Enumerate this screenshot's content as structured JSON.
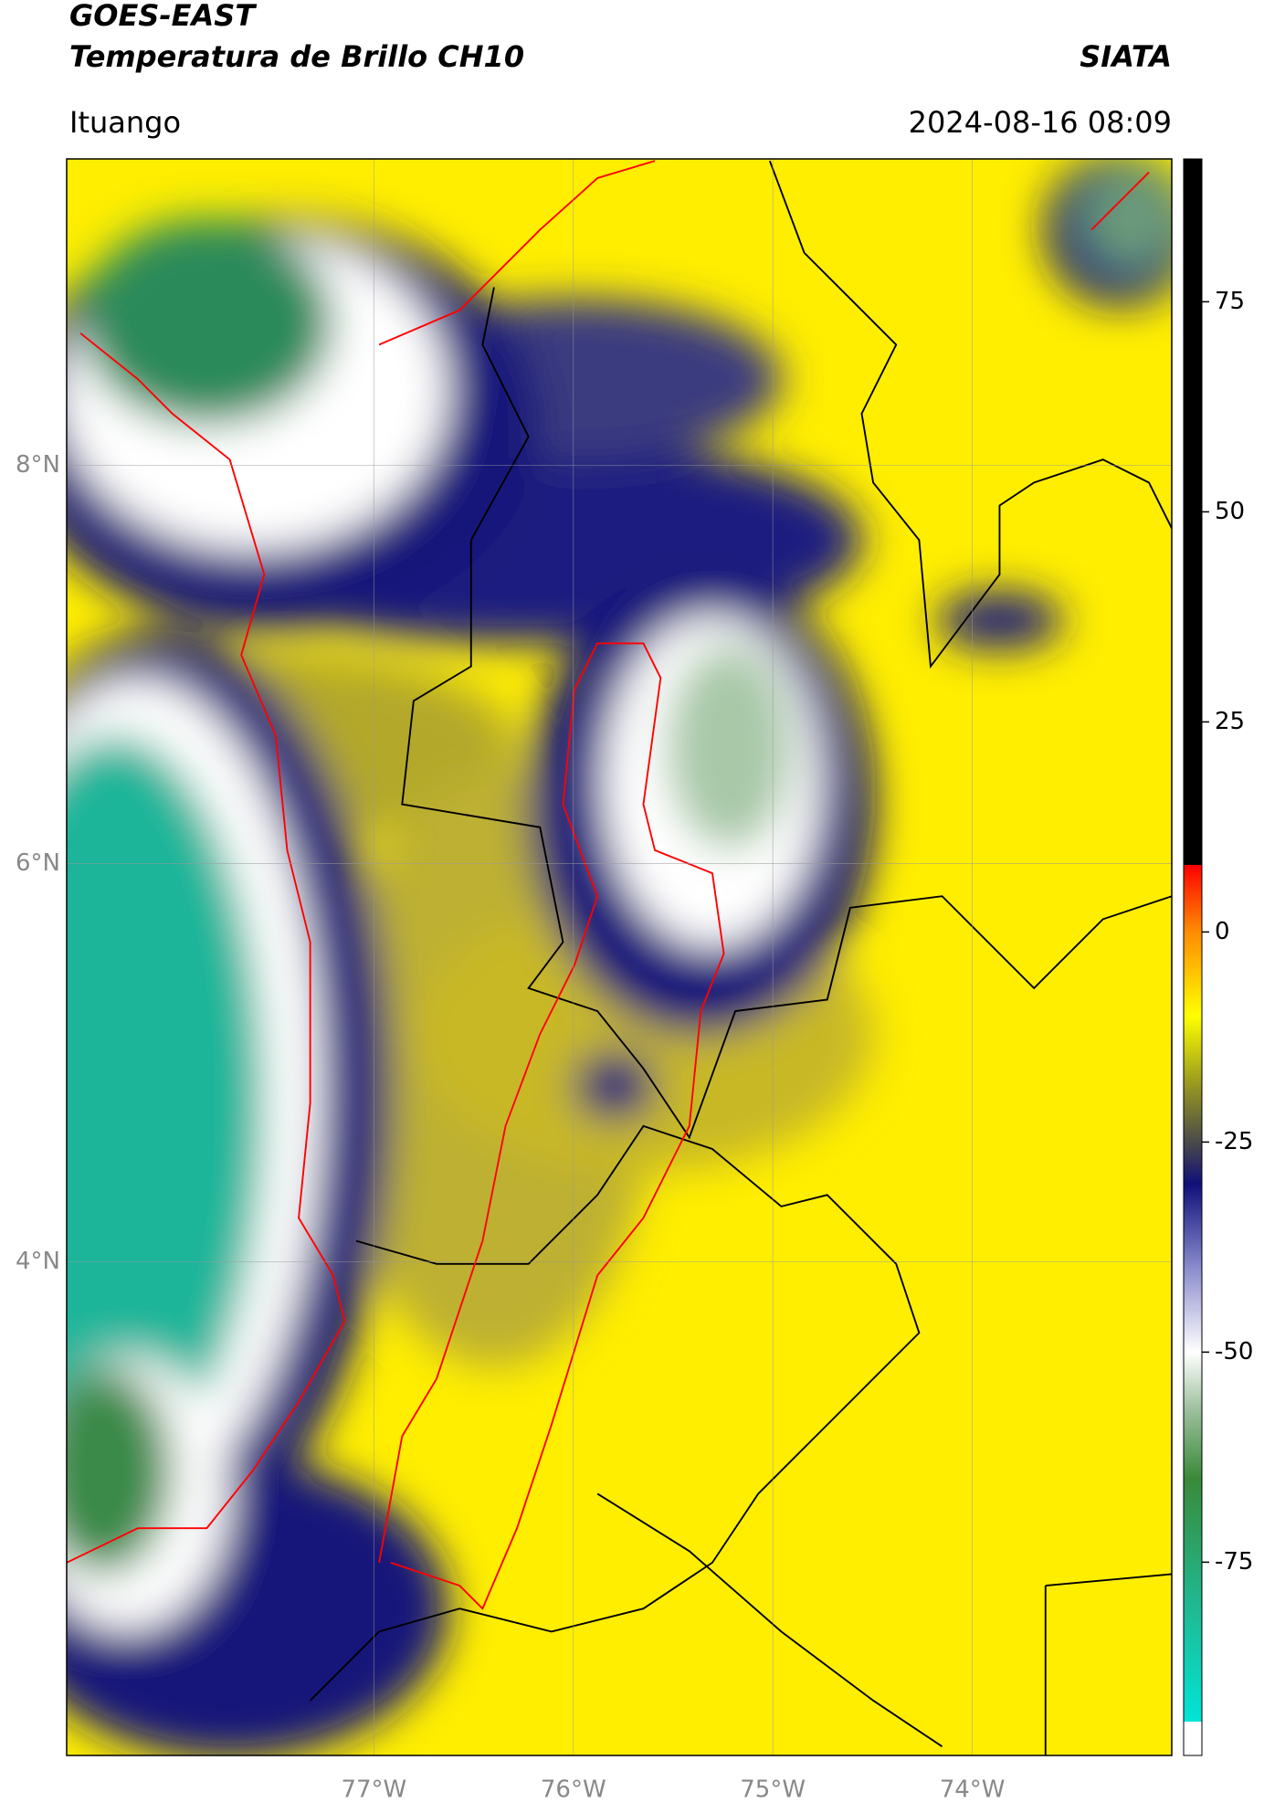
{
  "header": {
    "title": "GOES-EAST",
    "subtitle": "Temperatura de Brillo CH10",
    "source": "SIATA",
    "location": "Ituango",
    "datetime": "2024-08-16 08:09"
  },
  "chart_data": {
    "type": "map",
    "xlim": [
      -78.54,
      -73.0
    ],
    "ylim": [
      1.52,
      9.54
    ],
    "xticks": [
      {
        "value": -77,
        "label": "77°W"
      },
      {
        "value": -76,
        "label": "76°W"
      },
      {
        "value": -75,
        "label": "75°W"
      },
      {
        "value": -74,
        "label": "74°W"
      }
    ],
    "yticks": [
      {
        "value": 4,
        "label": "4°N"
      },
      {
        "value": 6,
        "label": "6°N"
      },
      {
        "value": 8,
        "label": "8°N"
      }
    ],
    "grid": true,
    "colorbar": {
      "lim": [
        -98,
        92
      ],
      "ticks": [
        -75,
        -50,
        -25,
        0,
        25,
        50,
        75
      ],
      "stops": [
        {
          "value": -98,
          "color": "#ffffff"
        },
        {
          "value": -94,
          "color": "#ffffff"
        },
        {
          "value": -94,
          "color": "#00e5d8"
        },
        {
          "value": -80,
          "color": "#20b890"
        },
        {
          "value": -65,
          "color": "#3a8a3a"
        },
        {
          "value": -57,
          "color": "#9bbf9b"
        },
        {
          "value": -50,
          "color": "#ffffff"
        },
        {
          "value": -40,
          "color": "#8a8ccc"
        },
        {
          "value": -30,
          "color": "#10107a"
        },
        {
          "value": -25,
          "color": "#4a4a4a"
        },
        {
          "value": -18,
          "color": "#9a9a20"
        },
        {
          "value": -10,
          "color": "#ffff00"
        },
        {
          "value": 0,
          "color": "#ff8c00"
        },
        {
          "value": 8,
          "color": "#ff0000"
        },
        {
          "value": 8,
          "color": "#000000"
        },
        {
          "value": 92,
          "color": "#000000"
        }
      ]
    }
  }
}
